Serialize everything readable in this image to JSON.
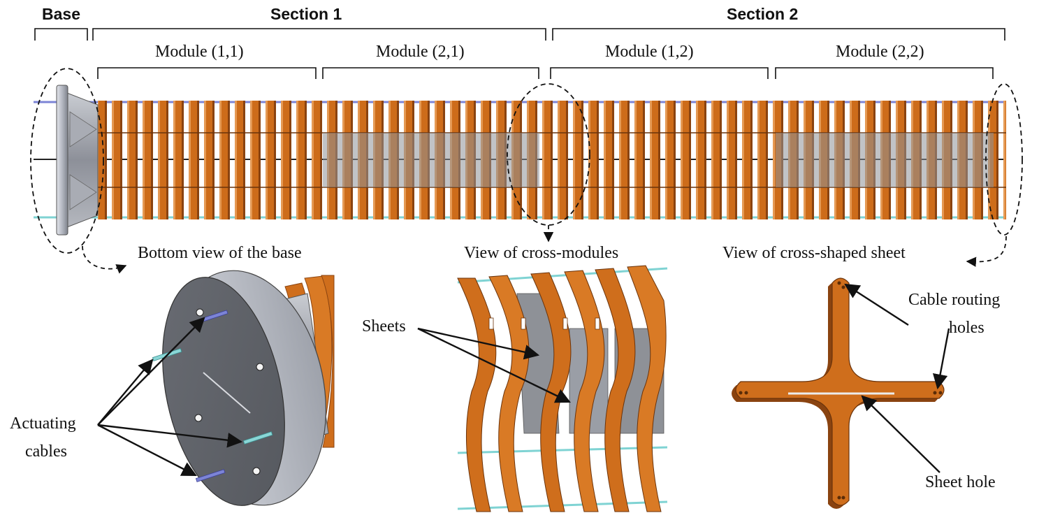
{
  "headers": {
    "base": "Base",
    "section1": "Section 1",
    "section2": "Section 2"
  },
  "modules": [
    "Module (1,1)",
    "Module (2,1)",
    "Module (1,2)",
    "Module (2,2)"
  ],
  "captions": {
    "bottom_view": "Bottom view of the base",
    "cross_modules": "View of cross-modules",
    "cross_sheet": "View of cross-shaped sheet"
  },
  "callouts": {
    "actuating_1": "Actuating",
    "actuating_2": "cables",
    "sheets": "Sheets",
    "cable_routing_1": "Cable routing",
    "cable_routing_2": "holes",
    "sheet_hole": "Sheet hole"
  },
  "colors": {
    "copper": "#cf6e1c",
    "copper_dark": "#8a4310",
    "copper_light": "#e59a55",
    "steel": "#9a9ea6",
    "steel_dark": "#6a6e76",
    "cable_blue": "#7c84d6",
    "cable_cyan": "#7fd3d3"
  }
}
